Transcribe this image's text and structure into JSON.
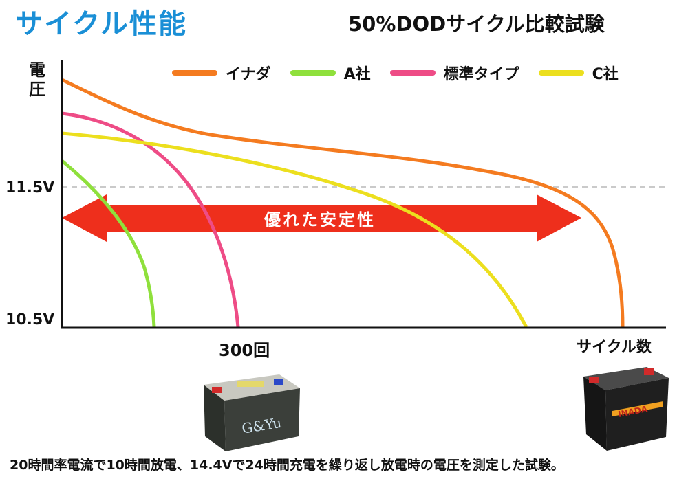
{
  "header": {
    "title": "サイクル性能",
    "subtitle": "50%DODサイクル比較試験"
  },
  "chart_data": {
    "type": "line",
    "ylabel": "電圧",
    "xlabel": "サイクル数",
    "ytick_labels": [
      "11.5V",
      "10.5V"
    ],
    "xtick_labels": [
      "300回"
    ],
    "reference_line": "11.5V",
    "series": [
      {
        "name": "イナダ",
        "color": "#f47b20"
      },
      {
        "name": "A社",
        "color": "#8fe03c"
      },
      {
        "name": "標準タイプ",
        "color": "#ee4c86"
      },
      {
        "name": "C社",
        "color": "#ecdf1e"
      }
    ],
    "annotation": "優れた安定性",
    "legend_position": "top"
  },
  "batteries": [
    {
      "brand_text": "G&Yu"
    },
    {
      "brand_text": "INADA"
    }
  ],
  "footnote": "20時間率電流で10時間放電、14.4Vで24時間充電を繰り返し放電時の電圧を測定した試験。"
}
